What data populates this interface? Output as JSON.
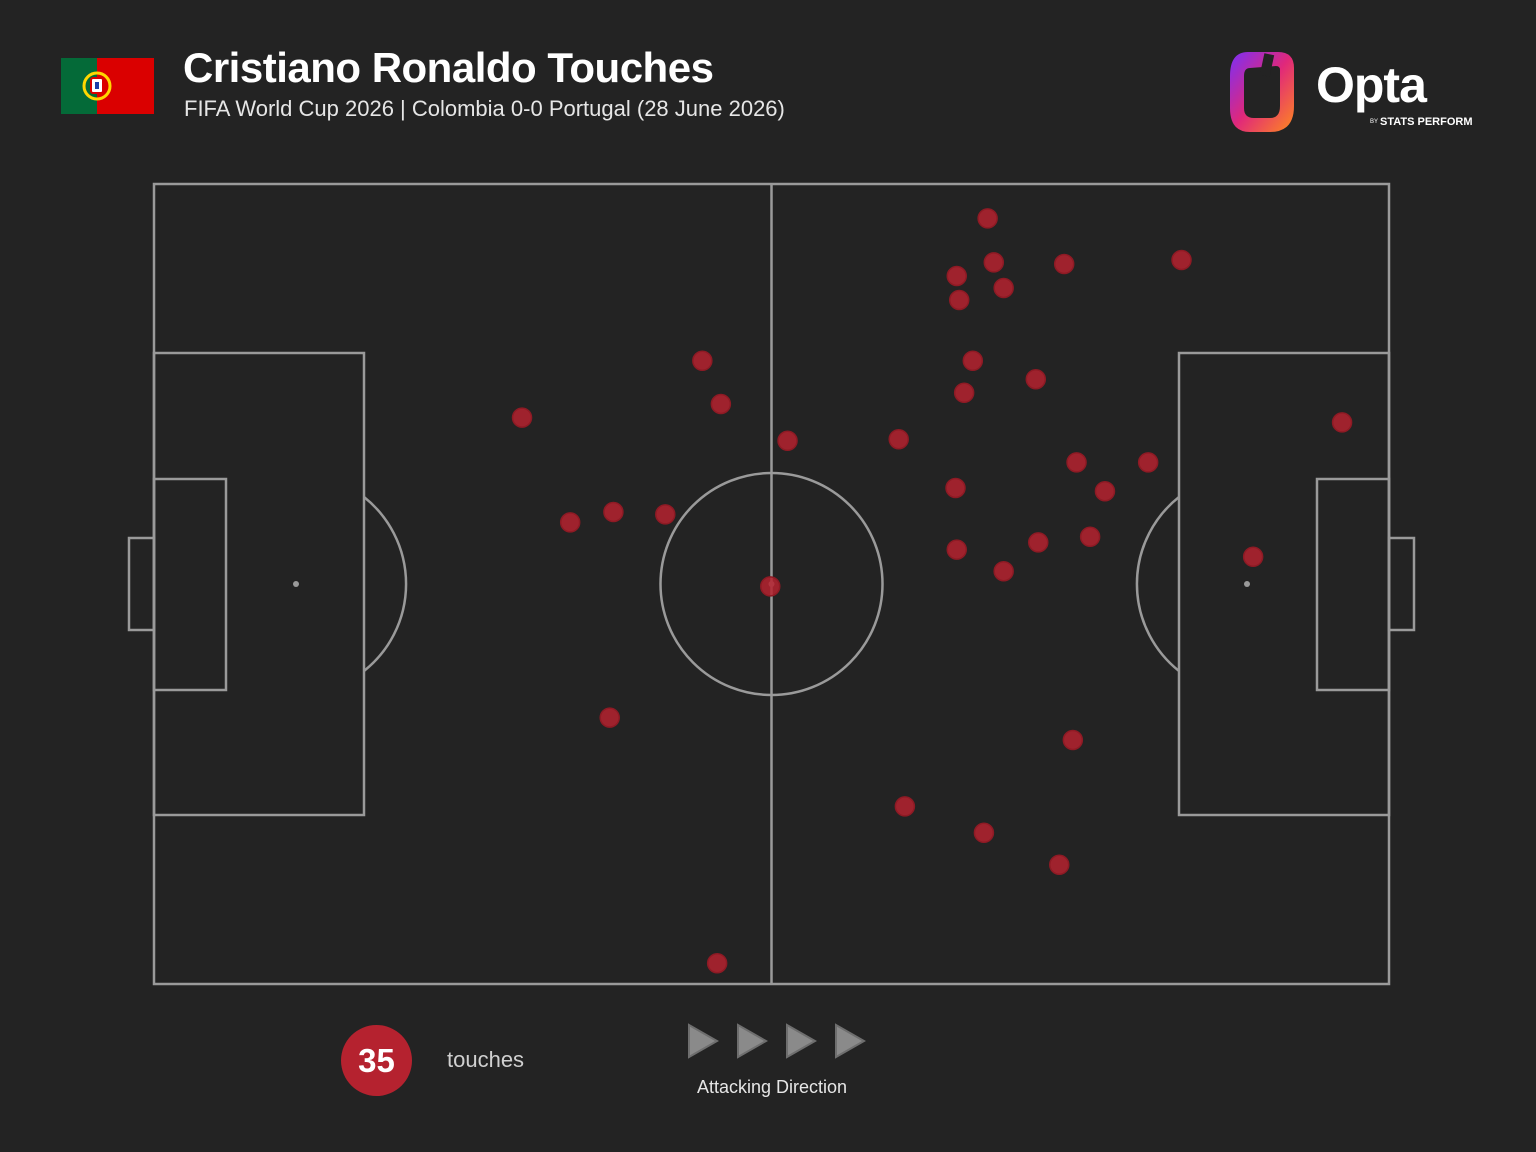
{
  "header": {
    "title": "Cristiano Ronaldo Touches",
    "subtitle": "FIFA World Cup 2026 | Colombia 0-0 Portugal (28 June 2026)",
    "flag_icon": "portugal-flag-icon",
    "flag_colors": {
      "green": "#046a38",
      "red": "#da0000",
      "gold": "#ffd700"
    }
  },
  "brand": {
    "logo_icon": "opta-logo-icon",
    "name": "Opta",
    "tagline_by": "BY",
    "tagline": "STATS PERFORM"
  },
  "colors": {
    "background": "#232323",
    "pitch_lines": "#9a9a9a",
    "touch": "#b5222f",
    "arrow": "#8a8a8a"
  },
  "chart_data": {
    "type": "scatter",
    "title": "Cristiano Ronaldo Touches",
    "xlim": [
      0,
      100
    ],
    "ylim": [
      0,
      100
    ],
    "attacking_direction": "left-to-right",
    "points": [
      {
        "x": 67.5,
        "y": 95.7
      },
      {
        "x": 68.0,
        "y": 90.2
      },
      {
        "x": 73.7,
        "y": 90.0
      },
      {
        "x": 83.2,
        "y": 90.5
      },
      {
        "x": 65.0,
        "y": 88.5
      },
      {
        "x": 68.8,
        "y": 87.0
      },
      {
        "x": 65.2,
        "y": 85.5
      },
      {
        "x": 66.3,
        "y": 77.9
      },
      {
        "x": 71.4,
        "y": 75.6
      },
      {
        "x": 65.6,
        "y": 73.9
      },
      {
        "x": 44.4,
        "y": 77.9
      },
      {
        "x": 45.9,
        "y": 72.5
      },
      {
        "x": 29.8,
        "y": 70.8
      },
      {
        "x": 51.3,
        "y": 67.9
      },
      {
        "x": 60.3,
        "y": 68.1
      },
      {
        "x": 96.2,
        "y": 70.2
      },
      {
        "x": 74.7,
        "y": 65.2
      },
      {
        "x": 80.5,
        "y": 65.2
      },
      {
        "x": 77.0,
        "y": 61.6
      },
      {
        "x": 64.9,
        "y": 62.0
      },
      {
        "x": 33.7,
        "y": 57.7
      },
      {
        "x": 37.2,
        "y": 59.0
      },
      {
        "x": 41.4,
        "y": 58.7
      },
      {
        "x": 65.0,
        "y": 54.3
      },
      {
        "x": 71.6,
        "y": 55.2
      },
      {
        "x": 75.8,
        "y": 55.9
      },
      {
        "x": 68.8,
        "y": 51.6
      },
      {
        "x": 89.0,
        "y": 53.4
      },
      {
        "x": 49.9,
        "y": 49.7
      },
      {
        "x": 36.9,
        "y": 33.3
      },
      {
        "x": 74.4,
        "y": 30.5
      },
      {
        "x": 60.8,
        "y": 22.2
      },
      {
        "x": 67.2,
        "y": 18.9
      },
      {
        "x": 73.3,
        "y": 14.9
      },
      {
        "x": 45.6,
        "y": 2.6
      }
    ]
  },
  "summary": {
    "count": "35",
    "count_label": "touches",
    "direction_label": "Attacking Direction",
    "arrow_icon": "play-arrow-icon"
  }
}
